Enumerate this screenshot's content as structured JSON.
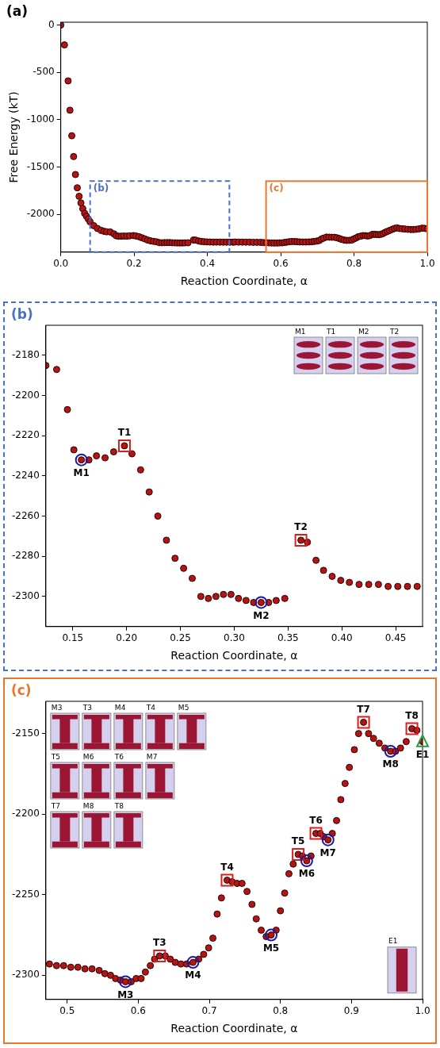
{
  "chart_data": [
    {
      "type": "scatter",
      "label": "(a)",
      "x_label": "Reaction Coordinate, α",
      "y_label": "Free Energy (kT)",
      "color": "#b31414",
      "grid": false,
      "frame": {
        "color": "#000000",
        "line_style": "none"
      },
      "xlim": [
        0,
        1
      ],
      "ylim": [
        -2400,
        30
      ],
      "xticks": [
        {
          "value": 0,
          "label": "0.0"
        },
        0.2,
        0.4,
        0.6,
        0.8,
        {
          "value": 1,
          "label": "1.0"
        }
      ],
      "yticks": [
        -2000,
        -1500,
        -1000,
        -500,
        0
      ],
      "regions": [
        {
          "label": "(b)",
          "xlim": [
            0.08,
            0.46
          ],
          "ylim": [
            -2400,
            -1650
          ],
          "color": "#4a72c4",
          "line_style": "dashed"
        },
        {
          "label": "(c)",
          "xlim": [
            0.56,
            1.0
          ],
          "ylim": [
            -2400,
            -1650
          ],
          "color": "#e8772e",
          "line_style": "solid"
        }
      ],
      "x": [
        0,
        0.01,
        0.02,
        0.025,
        0.03,
        0.035,
        0.04,
        0.045,
        0.05,
        0.055,
        0.06,
        0.065,
        0.07,
        0.075,
        0.08,
        0.09,
        0.1,
        0.11,
        0.118,
        0.125,
        0.135,
        0.145,
        0.151,
        0.158,
        0.165,
        0.172,
        0.18,
        0.188,
        0.198,
        0.205,
        0.213,
        0.221,
        0.229,
        0.237,
        0.245,
        0.253,
        0.261,
        0.269,
        0.276,
        0.283,
        0.29,
        0.297,
        0.304,
        0.311,
        0.318,
        0.325,
        0.332,
        0.339,
        0.347,
        0.362,
        0.368,
        0.376,
        0.383,
        0.391,
        0.399,
        0.407,
        0.416,
        0.425,
        0.434,
        0.443,
        0.452,
        0.461,
        0.47,
        0.475,
        0.485,
        0.495,
        0.505,
        0.515,
        0.525,
        0.535,
        0.545,
        0.553,
        0.561,
        0.568,
        0.575,
        0.582,
        0.59,
        0.597,
        0.604,
        0.61,
        0.617,
        0.623,
        0.63,
        0.638,
        0.645,
        0.652,
        0.66,
        0.668,
        0.677,
        0.685,
        0.692,
        0.699,
        0.705,
        0.711,
        0.717,
        0.725,
        0.732,
        0.739,
        0.746,
        0.753,
        0.76,
        0.766,
        0.773,
        0.78,
        0.787,
        0.794,
        0.8,
        0.806,
        0.812,
        0.818,
        0.825,
        0.831,
        0.837,
        0.843,
        0.85,
        0.856,
        0.861,
        0.867,
        0.873,
        0.879,
        0.885,
        0.891,
        0.897,
        0.904,
        0.91,
        0.917,
        0.924,
        0.931,
        0.939,
        0.947,
        0.955,
        0.962,
        0.969,
        0.977,
        0.985,
        0.992,
        1.0
      ],
      "values": [
        0,
        -210,
        -590,
        -900,
        -1170,
        -1390,
        -1580,
        -1720,
        -1810,
        -1880,
        -1940,
        -1990,
        -2020,
        -2050,
        -2080,
        -2120,
        -2150,
        -2170,
        -2180,
        -2185,
        -2187,
        -2207,
        -2227,
        -2232,
        -2232,
        -2230,
        -2231,
        -2228,
        -2225,
        -2229,
        -2237,
        -2248,
        -2260,
        -2272,
        -2281,
        -2286,
        -2291,
        -2300,
        -2301,
        -2300,
        -2299,
        -2299,
        -2301,
        -2302,
        -2303,
        -2303,
        -2303,
        -2302,
        -2301,
        -2272,
        -2273,
        -2282,
        -2287,
        -2290,
        -2292,
        -2293,
        -2294,
        -2294,
        -2294,
        -2295,
        -2295,
        -2295,
        -2295,
        -2293,
        -2294,
        -2294,
        -2295,
        -2295,
        -2296,
        -2296,
        -2297,
        -2299,
        -2300,
        -2302,
        -2303,
        -2304,
        -2304,
        -2302,
        -2302,
        -2298,
        -2294,
        -2290,
        -2288,
        -2288,
        -2290,
        -2292,
        -2293,
        -2293,
        -2292,
        -2290,
        -2287,
        -2283,
        -2277,
        -2262,
        -2252,
        -2241,
        -2242,
        -2243,
        -2243,
        -2248,
        -2256,
        -2265,
        -2272,
        -2276,
        -2275,
        -2272,
        -2260,
        -2249,
        -2237,
        -2231,
        -2225,
        -2226,
        -2229,
        -2226,
        -2212,
        -2212,
        -2214,
        -2216,
        -2212,
        -2204,
        -2191,
        -2181,
        -2171,
        -2160,
        -2150,
        -2143,
        -2150,
        -2153,
        -2156,
        -2159,
        -2161,
        -2161,
        -2159,
        -2155,
        -2147,
        -2148,
        -2155
      ]
    },
    {
      "type": "scatter",
      "label": "(b)",
      "x_label": "Reaction Coordinate, α",
      "color": "#b31414",
      "grid": false,
      "frame": {
        "color": "#4a72c4",
        "line_style": "dashed"
      },
      "xlim": [
        0.125,
        0.475
      ],
      "ylim": [
        -2315,
        -2165
      ],
      "xticks": [
        0.15,
        {
          "value": 0.2,
          "label": "0.20"
        },
        0.25,
        {
          "value": 0.3,
          "label": "0.30"
        },
        0.35,
        {
          "value": 0.4,
          "label": "0.40"
        },
        0.45
      ],
      "yticks": [
        -2300,
        -2280,
        -2260,
        -2240,
        -2220,
        -2200,
        -2180
      ],
      "annotations": [
        {
          "text": "M1",
          "x": 0.158,
          "y": -2232,
          "marker": "circle",
          "color": "#1a1aa8"
        },
        {
          "text": "T1",
          "x": 0.198,
          "y": -2225,
          "marker": "square",
          "color": "#d62020"
        },
        {
          "text": "M2",
          "x": 0.325,
          "y": -2303,
          "marker": "circle",
          "color": "#1a1aa8"
        },
        {
          "text": "T2",
          "x": 0.362,
          "y": -2272,
          "marker": "square",
          "color": "#d62020"
        }
      ],
      "insets": [
        [
          "M1",
          "T1",
          "M2",
          "T2"
        ]
      ],
      "inset_style": "layers",
      "x": [
        0.125,
        0.135,
        0.145,
        0.151,
        0.158,
        0.165,
        0.172,
        0.18,
        0.188,
        0.198,
        0.205,
        0.213,
        0.221,
        0.229,
        0.237,
        0.245,
        0.253,
        0.261,
        0.269,
        0.276,
        0.283,
        0.29,
        0.297,
        0.304,
        0.311,
        0.318,
        0.325,
        0.332,
        0.339,
        0.347,
        0.362,
        0.368,
        0.376,
        0.383,
        0.391,
        0.399,
        0.407,
        0.416,
        0.425,
        0.434,
        0.443,
        0.452,
        0.461,
        0.47
      ],
      "values": [
        -2185,
        -2187,
        -2207,
        -2227,
        -2232,
        -2232,
        -2230,
        -2231,
        -2228,
        -2225,
        -2229,
        -2237,
        -2248,
        -2260,
        -2272,
        -2281,
        -2286,
        -2291,
        -2300,
        -2301,
        -2300,
        -2299,
        -2299,
        -2301,
        -2302,
        -2303,
        -2303,
        -2303,
        -2302,
        -2301,
        -2272,
        -2273,
        -2282,
        -2287,
        -2290,
        -2292,
        -2293,
        -2294,
        -2294,
        -2294,
        -2295,
        -2295,
        -2295,
        -2295
      ]
    },
    {
      "type": "scatter",
      "label": "(c)",
      "x_label": "Reaction Coordinate, α",
      "color": "#b31414",
      "grid": false,
      "frame": {
        "color": "#e8772e",
        "line_style": "solid"
      },
      "xlim": [
        0.47,
        1.0
      ],
      "ylim": [
        -2315,
        -2130
      ],
      "xticks": [
        0.5,
        0.6,
        0.7,
        0.8,
        0.9,
        {
          "value": 1.0,
          "label": "1.0"
        }
      ],
      "yticks": [
        -2300,
        -2250,
        -2200,
        -2150
      ],
      "annotations": [
        {
          "text": "M3",
          "x": 0.582,
          "y": -2304,
          "marker": "circle",
          "color": "#1a1aa8"
        },
        {
          "text": "T3",
          "x": 0.63,
          "y": -2288,
          "marker": "square",
          "color": "#d62020"
        },
        {
          "text": "M4",
          "x": 0.677,
          "y": -2292,
          "marker": "circle",
          "color": "#1a1aa8"
        },
        {
          "text": "T4",
          "x": 0.725,
          "y": -2241,
          "marker": "square",
          "color": "#d62020"
        },
        {
          "text": "M5",
          "x": 0.787,
          "y": -2275,
          "marker": "circle",
          "color": "#1a1aa8"
        },
        {
          "text": "T5",
          "x": 0.825,
          "y": -2225,
          "marker": "square",
          "color": "#d62020"
        },
        {
          "text": "M6",
          "x": 0.837,
          "y": -2229,
          "marker": "circle",
          "color": "#1a1aa8"
        },
        {
          "text": "T6",
          "x": 0.85,
          "y": -2212,
          "marker": "square",
          "color": "#d62020"
        },
        {
          "text": "M7",
          "x": 0.867,
          "y": -2216,
          "marker": "circle",
          "color": "#1a1aa8"
        },
        {
          "text": "T7",
          "x": 0.917,
          "y": -2143,
          "marker": "square",
          "color": "#d62020"
        },
        {
          "text": "M8",
          "x": 0.955,
          "y": -2161,
          "marker": "circle",
          "color": "#1a1aa8"
        },
        {
          "text": "T8",
          "x": 0.985,
          "y": -2147,
          "marker": "square",
          "color": "#d62020"
        },
        {
          "text": "E1",
          "x": 1.0,
          "y": -2155,
          "marker": "triangle",
          "color": "#2a9d3a"
        }
      ],
      "insets": [
        [
          "M3",
          "T3",
          "M4",
          "T4",
          "M5"
        ],
        [
          "T5",
          "M6",
          "T6",
          "M7"
        ],
        [
          "T7",
          "M8",
          "T8"
        ]
      ],
      "inset_style": "columns",
      "corner_inset": "E1",
      "x": [
        0.475,
        0.485,
        0.495,
        0.505,
        0.515,
        0.525,
        0.535,
        0.545,
        0.553,
        0.561,
        0.568,
        0.575,
        0.582,
        0.59,
        0.597,
        0.604,
        0.61,
        0.617,
        0.623,
        0.63,
        0.638,
        0.645,
        0.652,
        0.66,
        0.668,
        0.677,
        0.685,
        0.692,
        0.699,
        0.705,
        0.711,
        0.717,
        0.725,
        0.732,
        0.739,
        0.746,
        0.753,
        0.76,
        0.766,
        0.773,
        0.78,
        0.787,
        0.794,
        0.8,
        0.806,
        0.812,
        0.818,
        0.825,
        0.831,
        0.837,
        0.843,
        0.85,
        0.856,
        0.861,
        0.867,
        0.873,
        0.879,
        0.885,
        0.891,
        0.897,
        0.904,
        0.91,
        0.917,
        0.924,
        0.931,
        0.939,
        0.947,
        0.955,
        0.962,
        0.969,
        0.977,
        0.985,
        0.992,
        1.0
      ],
      "values": [
        -2293,
        -2294,
        -2294,
        -2295,
        -2295,
        -2296,
        -2296,
        -2297,
        -2299,
        -2300,
        -2302,
        -2303,
        -2304,
        -2304,
        -2302,
        -2302,
        -2298,
        -2294,
        -2290,
        -2288,
        -2288,
        -2290,
        -2292,
        -2293,
        -2293,
        -2292,
        -2290,
        -2287,
        -2283,
        -2277,
        -2262,
        -2252,
        -2241,
        -2242,
        -2243,
        -2243,
        -2248,
        -2256,
        -2265,
        -2272,
        -2276,
        -2275,
        -2272,
        -2260,
        -2249,
        -2237,
        -2231,
        -2225,
        -2226,
        -2229,
        -2226,
        -2212,
        -2212,
        -2214,
        -2216,
        -2212,
        -2204,
        -2191,
        -2181,
        -2171,
        -2160,
        -2150,
        -2143,
        -2150,
        -2153,
        -2156,
        -2159,
        -2161,
        -2161,
        -2159,
        -2155,
        -2147,
        -2148,
        -2155
      ]
    }
  ]
}
